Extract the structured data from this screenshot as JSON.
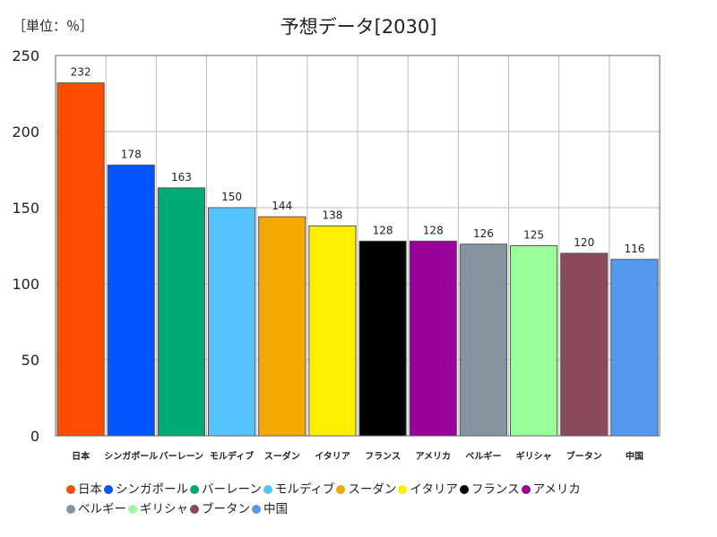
{
  "chart_data": {
    "type": "bar",
    "title": "予想データ[2030]",
    "unit_label": "［単位：％］",
    "xlabel": "",
    "ylabel": "",
    "ylim": [
      0,
      250
    ],
    "yticks": [
      0,
      50,
      100,
      150,
      200,
      250
    ],
    "grid": true,
    "legend_position": "bottom",
    "categories": [
      "日本",
      "シンガポール",
      "バーレーン",
      "モルディブ",
      "スーダン",
      "イタリア",
      "フランス",
      "アメリカ",
      "ベルギー",
      "ギリシャ",
      "ブータン",
      "中国"
    ],
    "values": [
      232,
      178,
      163,
      150,
      144,
      138,
      128,
      128,
      126,
      125,
      120,
      116
    ],
    "colors": [
      "#FF4D00",
      "#0055FF",
      "#00AA77",
      "#55C3FF",
      "#F5A800",
      "#FFEE00",
      "#000000",
      "#990099",
      "#8694A0",
      "#99FF99",
      "#8B4A5A",
      "#5599EE"
    ]
  }
}
